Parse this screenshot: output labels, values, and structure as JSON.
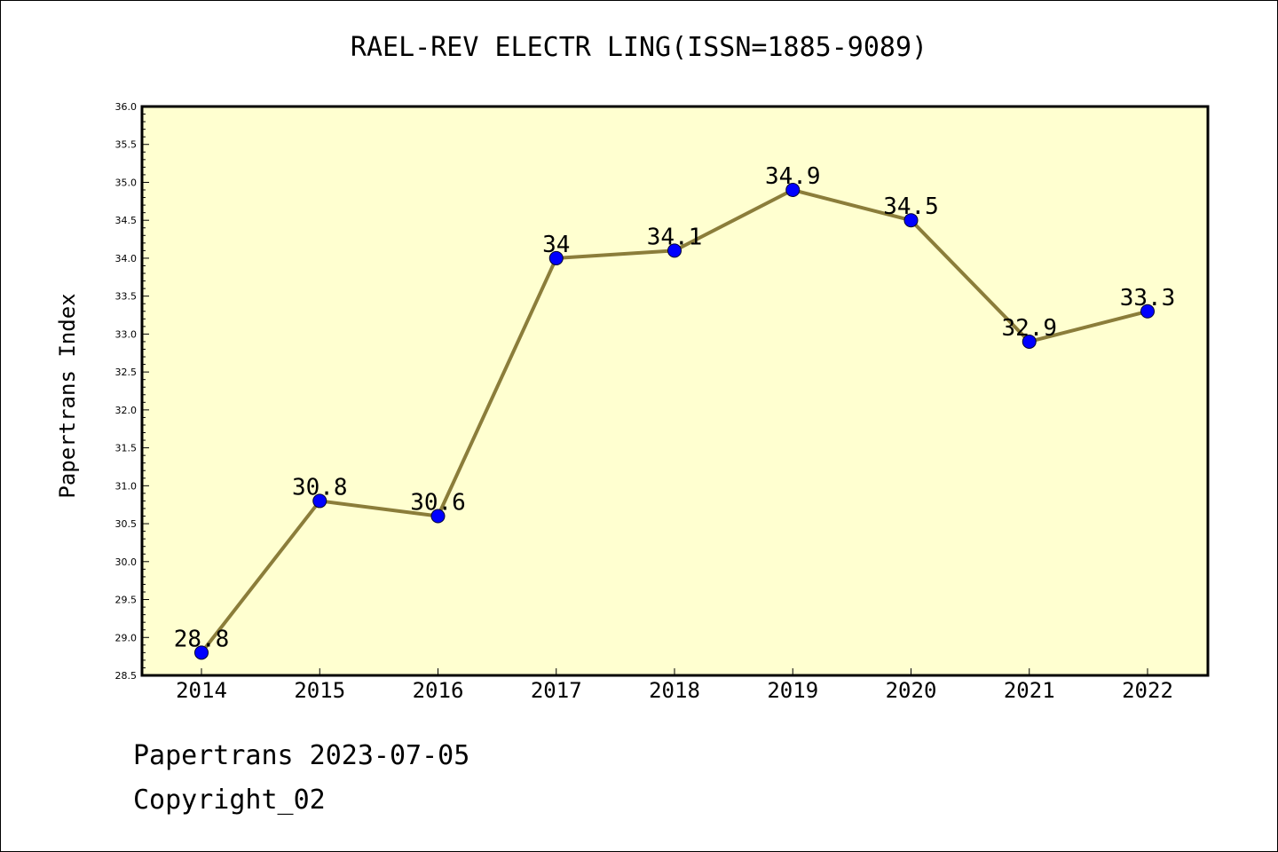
{
  "page": {
    "footer_date": "Papertrans 2023-07-05",
    "footer_copyright": "Copyright_02"
  },
  "chart_data": {
    "type": "line",
    "title": "RAEL-REV ELECTR LING(ISSN=1885-9089)",
    "xlabel": "",
    "ylabel": "Papertrans Index",
    "categories": [
      "2014",
      "2015",
      "2016",
      "2017",
      "2018",
      "2019",
      "2020",
      "2021",
      "2022"
    ],
    "series": [
      {
        "values": [
          28.8,
          30.8,
          30.6,
          34,
          34.1,
          34.9,
          34.5,
          32.9,
          33.3
        ],
        "data_labels": [
          "28.8",
          "30.8",
          "30.6",
          "34",
          "34.1",
          "34.9",
          "34.5",
          "32.9",
          "33.3"
        ],
        "line_color": "#8b7d3a",
        "marker_color": "#0000ff"
      }
    ],
    "ylim": [
      28.5,
      36.0
    ],
    "yticks": [
      "28.5",
      "29.0",
      "29.5",
      "30.0",
      "30.5",
      "31.0",
      "31.5",
      "32.0",
      "32.5",
      "33.0",
      "33.5",
      "34.0",
      "34.5",
      "35.0",
      "35.5",
      "36.0"
    ],
    "plot_background": "#ffffd0",
    "grid": false,
    "legend": "none"
  }
}
